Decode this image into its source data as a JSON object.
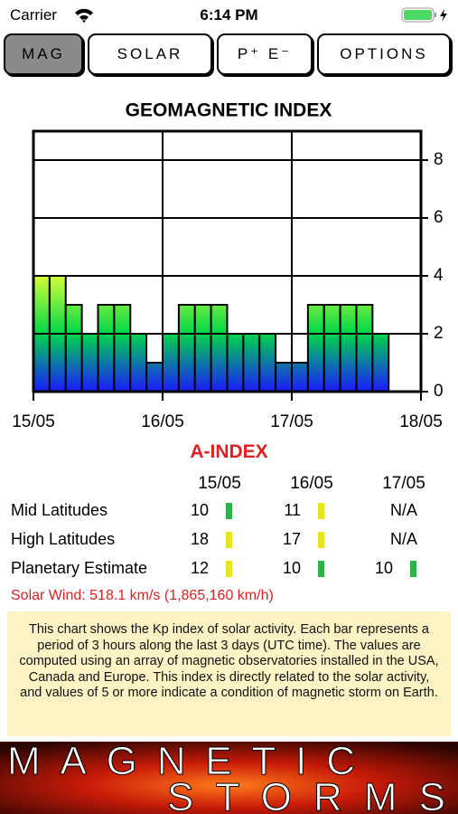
{
  "status_bar": {
    "carrier": "Carrier",
    "time": "6:14 PM"
  },
  "tabs": [
    {
      "label": "MAG",
      "selected": true
    },
    {
      "label": "SOLAR",
      "selected": false
    },
    {
      "label": "P⁺ E⁻",
      "selected": false
    },
    {
      "label": "OPTIONS",
      "selected": false
    }
  ],
  "chart_data": {
    "type": "histogram",
    "title": "GEOMAGNETIC INDEX",
    "bins": [
      0,
      3,
      6,
      9,
      12,
      15,
      18,
      21,
      24,
      27,
      30,
      33,
      36,
      39,
      42,
      45,
      48,
      51,
      54,
      57,
      60,
      63,
      66
    ],
    "values": [
      4,
      4,
      3,
      2,
      3,
      3,
      2,
      1,
      2,
      3,
      3,
      3,
      2,
      2,
      2,
      1,
      1,
      3,
      3,
      3,
      3,
      2
    ],
    "colorscale": [
      "#1a1aff",
      "#00d848",
      "#d8ff38"
    ],
    "xlim": [
      0,
      72
    ],
    "xticks": [
      {
        "value": 0,
        "label": "15/05"
      },
      {
        "value": 24,
        "label": "16/05"
      },
      {
        "value": 48,
        "label": "17/05"
      },
      {
        "value": 72,
        "label": "18/05"
      }
    ],
    "ylim": [
      0,
      9
    ],
    "yticks": [
      0,
      2,
      4,
      6,
      8
    ],
    "grid": true
  },
  "a_index": {
    "title": "A-INDEX",
    "columns": [
      "15/05",
      "16/05",
      "17/05"
    ],
    "rows": [
      {
        "label": "Mid Latitudes",
        "cells": [
          {
            "text": "10",
            "color": "#2db34a"
          },
          {
            "text": "11",
            "color": "#e6e61e"
          },
          {
            "text": "N/A"
          }
        ]
      },
      {
        "label": "High Latitudes",
        "cells": [
          {
            "text": "18",
            "color": "#e6e61e"
          },
          {
            "text": "17",
            "color": "#e6e61e"
          },
          {
            "text": "N/A"
          }
        ]
      },
      {
        "label": "Planetary Estimate",
        "cells": [
          {
            "text": "12",
            "color": "#e6e61e"
          },
          {
            "text": "10",
            "color": "#2db34a"
          },
          {
            "text": "10",
            "color": "#2db34a"
          }
        ]
      }
    ]
  },
  "solar_wind": "Solar Wind: 518.1 km/s (1,865,160 km/h)",
  "description": "This chart shows the Kp index of solar activity. Each bar represents a period of 3 hours along the last 3 days (UTC time). The values are computed using an array of magnetic observatories installed in the USA, Canada and Europe. This index is directly related to the solar activity, and values of 5 or more indicate a condition of magnetic storm on Earth.",
  "banner": {
    "line1": "MAGNETIC",
    "line2": "STORMS"
  }
}
